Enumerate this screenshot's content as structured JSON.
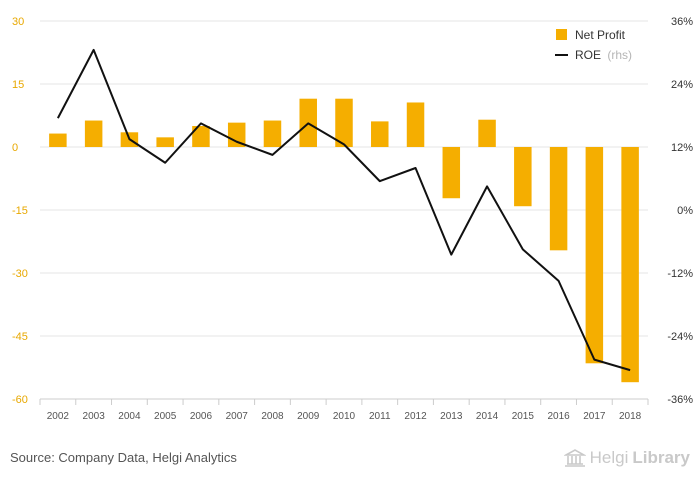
{
  "colors": {
    "bar": "#f5ae00",
    "line": "#111111",
    "left_axis_text": "#e8a800",
    "right_axis_text": "#333333",
    "grid": "#e6e6e6"
  },
  "chart_data": {
    "type": "bar",
    "categories": [
      "2002",
      "2003",
      "2004",
      "2005",
      "2006",
      "2007",
      "2008",
      "2009",
      "2010",
      "2011",
      "2012",
      "2013",
      "2014",
      "2015",
      "2016",
      "2017",
      "2018"
    ],
    "series": [
      {
        "name": "Net Profit",
        "type": "bar",
        "axis": "left",
        "values": [
          3.2,
          6.3,
          3.5,
          2.3,
          5.0,
          5.8,
          6.3,
          11.5,
          11.5,
          6.1,
          10.6,
          -12.2,
          6.5,
          -14.1,
          -24.6,
          -51.5,
          -56.0
        ]
      },
      {
        "name": "ROE",
        "name_suffix": "(rhs)",
        "type": "line",
        "axis": "right",
        "values": [
          17.5,
          30.5,
          13.5,
          9.0,
          16.5,
          13.0,
          10.5,
          16.5,
          12.5,
          5.5,
          8.0,
          -8.5,
          4.5,
          -7.5,
          -13.5,
          -28.5,
          -30.5
        ]
      }
    ],
    "left_axis": {
      "ticks": [
        "30",
        "15",
        "0",
        "-15",
        "-30",
        "-45",
        "-60"
      ],
      "range": [
        -60,
        30
      ]
    },
    "right_axis": {
      "ticks": [
        "36%",
        "24%",
        "12%",
        "0%",
        "-12%",
        "-24%",
        "-36%"
      ],
      "range": [
        -36,
        36
      ]
    },
    "grid": true,
    "legend_position": "top-right",
    "title": "",
    "xlabel": "",
    "ylabel": ""
  },
  "footer": {
    "source": "Source: Company Data, Helgi Analytics",
    "brand_prefix": "Helgi",
    "brand_suffix": "Library"
  }
}
